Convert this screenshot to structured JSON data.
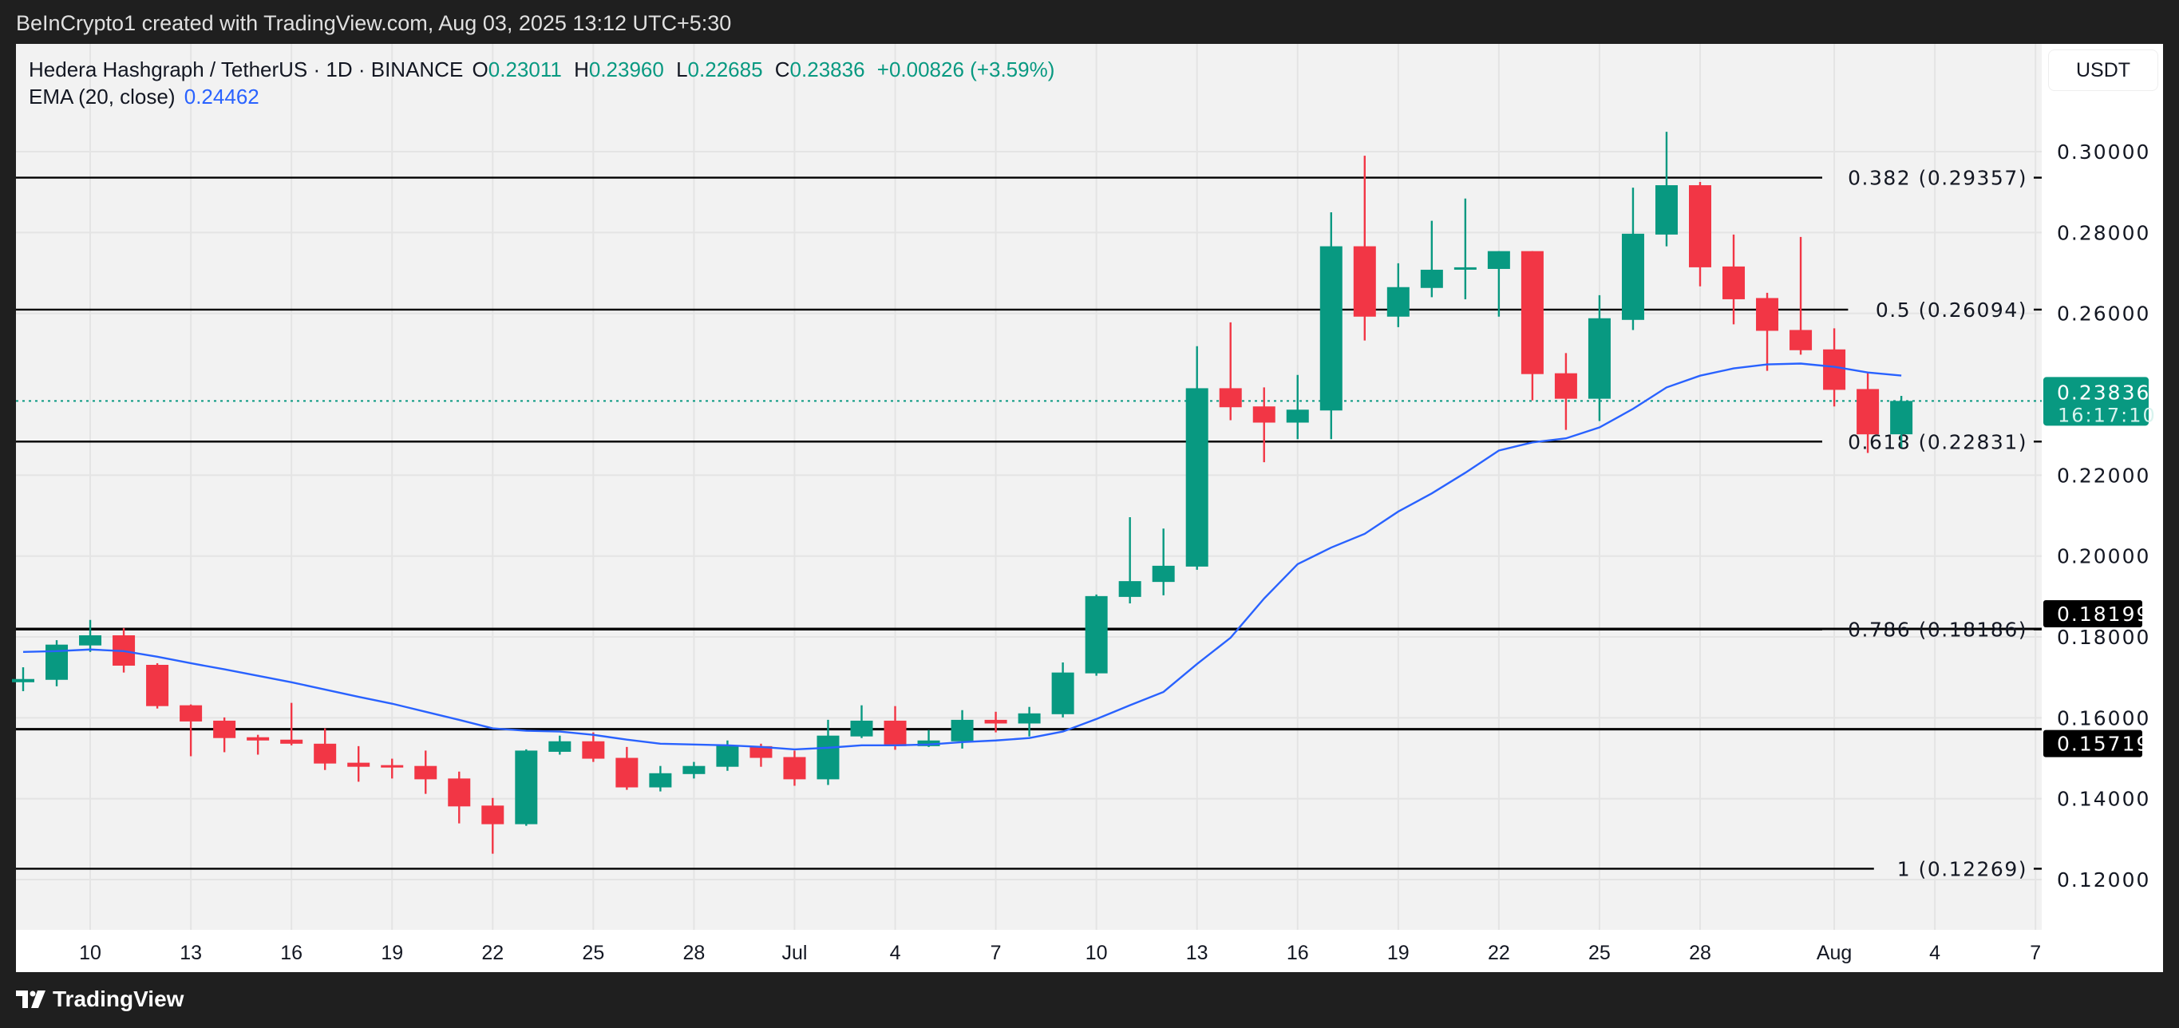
{
  "header": {
    "attribution": "BeInCrypto1 created with TradingView.com, Aug 03, 2025 13:12 UTC+5:30"
  },
  "legend": {
    "title": "Hedera Hashgraph / TetherUS · 1D · BINANCE",
    "o_label": "O",
    "o": "0.23011",
    "h_label": "H",
    "h": "0.23960",
    "l_label": "L",
    "l": "0.22685",
    "c_label": "C",
    "c": "0.23836",
    "change": "+0.00826 (+3.59%)"
  },
  "ema": {
    "label": "EMA (20, close)",
    "value": "0.24462"
  },
  "axis": {
    "currency": "USDT"
  },
  "price_label": {
    "value": "0.23836",
    "countdown": "16:17:10"
  },
  "footer": {
    "brand": "TradingView"
  },
  "chart_data": {
    "type": "candlestick",
    "title": "Hedera Hashgraph / TetherUS · 1D · BINANCE",
    "ylim": [
      0.11,
      0.32
    ],
    "colors": {
      "up": "#089981",
      "down": "#f23645",
      "ema": "#2962ff",
      "line": "#000000"
    },
    "dates": [
      "Jun 8",
      "Jun 9",
      "Jun 10",
      "Jun 11",
      "Jun 12",
      "Jun 13",
      "Jun 14",
      "Jun 15",
      "Jun 16",
      "Jun 17",
      "Jun 18",
      "Jun 19",
      "Jun 20",
      "Jun 21",
      "Jun 22",
      "Jun 23",
      "Jun 24",
      "Jun 25",
      "Jun 26",
      "Jun 27",
      "Jun 28",
      "Jun 29",
      "Jun 30",
      "Jul 1",
      "Jul 2",
      "Jul 3",
      "Jul 4",
      "Jul 5",
      "Jul 6",
      "Jul 7",
      "Jul 8",
      "Jul 9",
      "Jul 10",
      "Jul 11",
      "Jul 12",
      "Jul 13",
      "Jul 14",
      "Jul 15",
      "Jul 16",
      "Jul 17",
      "Jul 18",
      "Jul 19",
      "Jul 20",
      "Jul 21",
      "Jul 22",
      "Jul 23",
      "Jul 24",
      "Jul 25",
      "Jul 26",
      "Jul 27",
      "Jul 28",
      "Jul 29",
      "Jul 30",
      "Jul 31",
      "Aug 1",
      "Aug 2",
      "Aug 3"
    ],
    "ohlc": [
      [
        0.1688,
        0.1725,
        0.1666,
        0.1696
      ],
      [
        0.1694,
        0.1792,
        0.1678,
        0.1781
      ],
      [
        0.1779,
        0.1842,
        0.1763,
        0.1804
      ],
      [
        0.1804,
        0.1822,
        0.1712,
        0.1729
      ],
      [
        0.1731,
        0.1735,
        0.1623,
        0.1629
      ],
      [
        0.1631,
        0.1633,
        0.1505,
        0.1591
      ],
      [
        0.1593,
        0.1601,
        0.1515,
        0.155
      ],
      [
        0.1552,
        0.1558,
        0.1509,
        0.1544
      ],
      [
        0.1546,
        0.1637,
        0.1532,
        0.1536
      ],
      [
        0.1536,
        0.1574,
        0.1471,
        0.1487
      ],
      [
        0.1489,
        0.153,
        0.1442,
        0.1479
      ],
      [
        0.1483,
        0.1499,
        0.145,
        0.1479
      ],
      [
        0.1481,
        0.1519,
        0.1412,
        0.1448
      ],
      [
        0.145,
        0.1467,
        0.1339,
        0.1381
      ],
      [
        0.1383,
        0.1402,
        0.1264,
        0.1337
      ],
      [
        0.1337,
        0.1522,
        0.1333,
        0.1519
      ],
      [
        0.1516,
        0.1556,
        0.1509,
        0.1542
      ],
      [
        0.1542,
        0.1564,
        0.1491,
        0.1499
      ],
      [
        0.1501,
        0.1528,
        0.1422,
        0.1428
      ],
      [
        0.1428,
        0.1481,
        0.1418,
        0.1463
      ],
      [
        0.1461,
        0.1491,
        0.145,
        0.1481
      ],
      [
        0.1479,
        0.1544,
        0.1469,
        0.1532
      ],
      [
        0.153,
        0.1536,
        0.1479,
        0.1501
      ],
      [
        0.1503,
        0.1519,
        0.1432,
        0.1448
      ],
      [
        0.1448,
        0.1595,
        0.1434,
        0.1556
      ],
      [
        0.1554,
        0.1631,
        0.155,
        0.1593
      ],
      [
        0.1593,
        0.1629,
        0.1521,
        0.153
      ],
      [
        0.153,
        0.157,
        0.1528,
        0.1544
      ],
      [
        0.1542,
        0.1619,
        0.1524,
        0.1595
      ],
      [
        0.1595,
        0.1615,
        0.1564,
        0.1586
      ],
      [
        0.1586,
        0.1627,
        0.1554,
        0.1611
      ],
      [
        0.1609,
        0.1737,
        0.1601,
        0.1712
      ],
      [
        0.171,
        0.1905,
        0.1704,
        0.1901
      ],
      [
        0.1899,
        0.2096,
        0.1883,
        0.1938
      ],
      [
        0.1936,
        0.2068,
        0.1903,
        0.1976
      ],
      [
        0.1974,
        0.2519,
        0.1966,
        0.2415
      ],
      [
        0.2415,
        0.2578,
        0.2336,
        0.2368
      ],
      [
        0.237,
        0.2417,
        0.2232,
        0.233
      ],
      [
        0.233,
        0.2448,
        0.2289,
        0.2362
      ],
      [
        0.236,
        0.285,
        0.2289,
        0.2766
      ],
      [
        0.2766,
        0.299,
        0.2533,
        0.2592
      ],
      [
        0.2592,
        0.2724,
        0.2566,
        0.2665
      ],
      [
        0.2663,
        0.2829,
        0.264,
        0.2708
      ],
      [
        0.2712,
        0.2884,
        0.2635,
        0.2714
      ],
      [
        0.271,
        0.2754,
        0.2592,
        0.2754
      ],
      [
        0.2754,
        0.2754,
        0.2385,
        0.245
      ],
      [
        0.2452,
        0.2502,
        0.2312,
        0.2389
      ],
      [
        0.2389,
        0.2645,
        0.2334,
        0.2588
      ],
      [
        0.2584,
        0.2911,
        0.2559,
        0.2797
      ],
      [
        0.2795,
        0.3049,
        0.2766,
        0.2917
      ],
      [
        0.2917,
        0.2925,
        0.2667,
        0.2714
      ],
      [
        0.2716,
        0.2795,
        0.2573,
        0.2635
      ],
      [
        0.2638,
        0.2651,
        0.2458,
        0.2557
      ],
      [
        0.2559,
        0.2789,
        0.2498,
        0.2509
      ],
      [
        0.2511,
        0.2563,
        0.237,
        0.2411
      ],
      [
        0.2413,
        0.2452,
        0.2255,
        0.2301
      ],
      [
        0.23011,
        0.2396,
        0.22685,
        0.23836
      ]
    ],
    "ema20": [
      0.1763,
      0.1765,
      0.1769,
      0.1765,
      0.1751,
      0.1735,
      0.172,
      0.1704,
      0.1688,
      0.167,
      0.1652,
      0.1635,
      0.1615,
      0.1595,
      0.1574,
      0.1568,
      0.1566,
      0.1558,
      0.1546,
      0.1536,
      0.1534,
      0.1532,
      0.1528,
      0.1522,
      0.1526,
      0.1532,
      0.1532,
      0.1534,
      0.154,
      0.1544,
      0.155,
      0.1566,
      0.1597,
      0.1631,
      0.1664,
      0.1733,
      0.1798,
      0.1895,
      0.198,
      0.2021,
      0.2055,
      0.211,
      0.2155,
      0.2206,
      0.2261,
      0.2281,
      0.2291,
      0.2318,
      0.2364,
      0.2417,
      0.2446,
      0.2464,
      0.2474,
      0.2476,
      0.2468,
      0.2454,
      0.24462
    ],
    "yticks": [
      {
        "value": 0.3,
        "label": "0.30000"
      },
      {
        "value": 0.28,
        "label": "0.28000"
      },
      {
        "value": 0.26,
        "label": "0.26000"
      },
      {
        "value": 0.22,
        "label": "0.22000"
      },
      {
        "value": 0.2,
        "label": "0.20000"
      },
      {
        "value": 0.18,
        "label": "0.18000"
      },
      {
        "value": 0.16,
        "label": "0.16000"
      },
      {
        "value": 0.14,
        "label": "0.14000"
      },
      {
        "value": 0.12,
        "label": "0.12000"
      }
    ],
    "xticks": [
      {
        "index": 2,
        "label": "10"
      },
      {
        "index": 5,
        "label": "13"
      },
      {
        "index": 8,
        "label": "16"
      },
      {
        "index": 11,
        "label": "19"
      },
      {
        "index": 14,
        "label": "22"
      },
      {
        "index": 17,
        "label": "25"
      },
      {
        "index": 20,
        "label": "28"
      },
      {
        "index": 23,
        "label": "Jul"
      },
      {
        "index": 26,
        "label": "4"
      },
      {
        "index": 29,
        "label": "7"
      },
      {
        "index": 32,
        "label": "10"
      },
      {
        "index": 35,
        "label": "13"
      },
      {
        "index": 38,
        "label": "16"
      },
      {
        "index": 41,
        "label": "19"
      },
      {
        "index": 44,
        "label": "22"
      },
      {
        "index": 47,
        "label": "25"
      },
      {
        "index": 50,
        "label": "28"
      },
      {
        "index": 54,
        "label": "Aug"
      },
      {
        "index": 57,
        "label": "4"
      },
      {
        "index": 60,
        "label": "7"
      }
    ],
    "fib_levels": [
      {
        "value": 0.29357,
        "label": "0.382 (0.29357)"
      },
      {
        "value": 0.26094,
        "label": "0.5 (0.26094)"
      },
      {
        "value": 0.22831,
        "label": "0.618 (0.22831)"
      },
      {
        "value": 0.18186,
        "label": "0.786 (0.18186)"
      },
      {
        "value": 0.12269,
        "label": "1 (0.12269)"
      }
    ],
    "horizontal_lines": [
      {
        "value": 0.18199,
        "label": "0.18199"
      },
      {
        "value": 0.15719,
        "label": "0.15719"
      }
    ],
    "last_price": 0.23836
  }
}
